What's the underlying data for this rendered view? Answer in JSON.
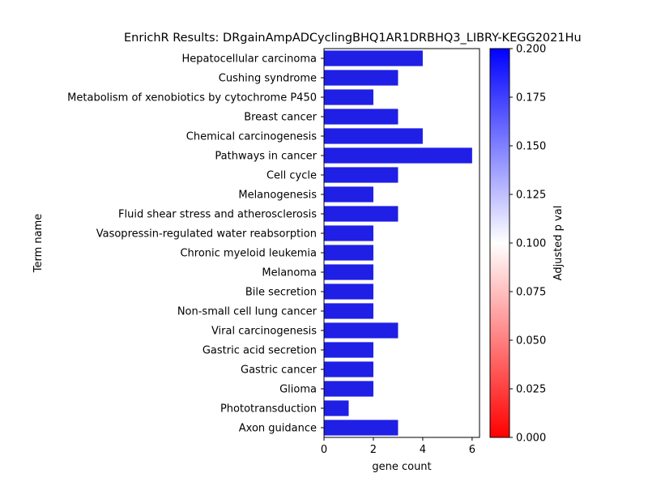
{
  "chart_data": {
    "type": "bar",
    "orientation": "horizontal",
    "title": "EnrichR Results: DRgainAmpADCyclingBHQ1AR1DRBHQ3_LIBRY-KEGG2021Hu",
    "xlabel": "gene count",
    "ylabel": "Term name",
    "xlim": [
      0,
      6.3
    ],
    "xticks": [
      0,
      2,
      4,
      6
    ],
    "grid": false,
    "bar_color": "#1f1fe6",
    "categories": [
      "Hepatocellular carcinoma",
      "Cushing syndrome",
      "Metabolism of xenobiotics by cytochrome P450",
      "Breast cancer",
      "Chemical carcinogenesis",
      "Pathways in cancer",
      "Cell cycle",
      "Melanogenesis",
      "Fluid shear stress and atherosclerosis",
      "Vasopressin-regulated water reabsorption",
      "Chronic myeloid leukemia",
      "Melanoma",
      "Bile secretion",
      "Non-small cell lung cancer",
      "Viral carcinogenesis",
      "Gastric acid secretion",
      "Gastric cancer",
      "Glioma",
      "Phototransduction",
      "Axon guidance"
    ],
    "values": [
      4,
      3,
      2,
      3,
      4,
      6,
      3,
      2,
      3,
      2,
      2,
      2,
      2,
      2,
      3,
      2,
      2,
      2,
      1,
      3
    ],
    "colorbar": {
      "label": "Adjusted p val",
      "range": [
        0.0,
        0.2
      ],
      "ticks": [
        "0.000",
        "0.025",
        "0.050",
        "0.075",
        "0.100",
        "0.125",
        "0.150",
        "0.175",
        "0.200"
      ],
      "colors": [
        "#ff0000",
        "#ffffff",
        "#0000ff"
      ]
    }
  }
}
